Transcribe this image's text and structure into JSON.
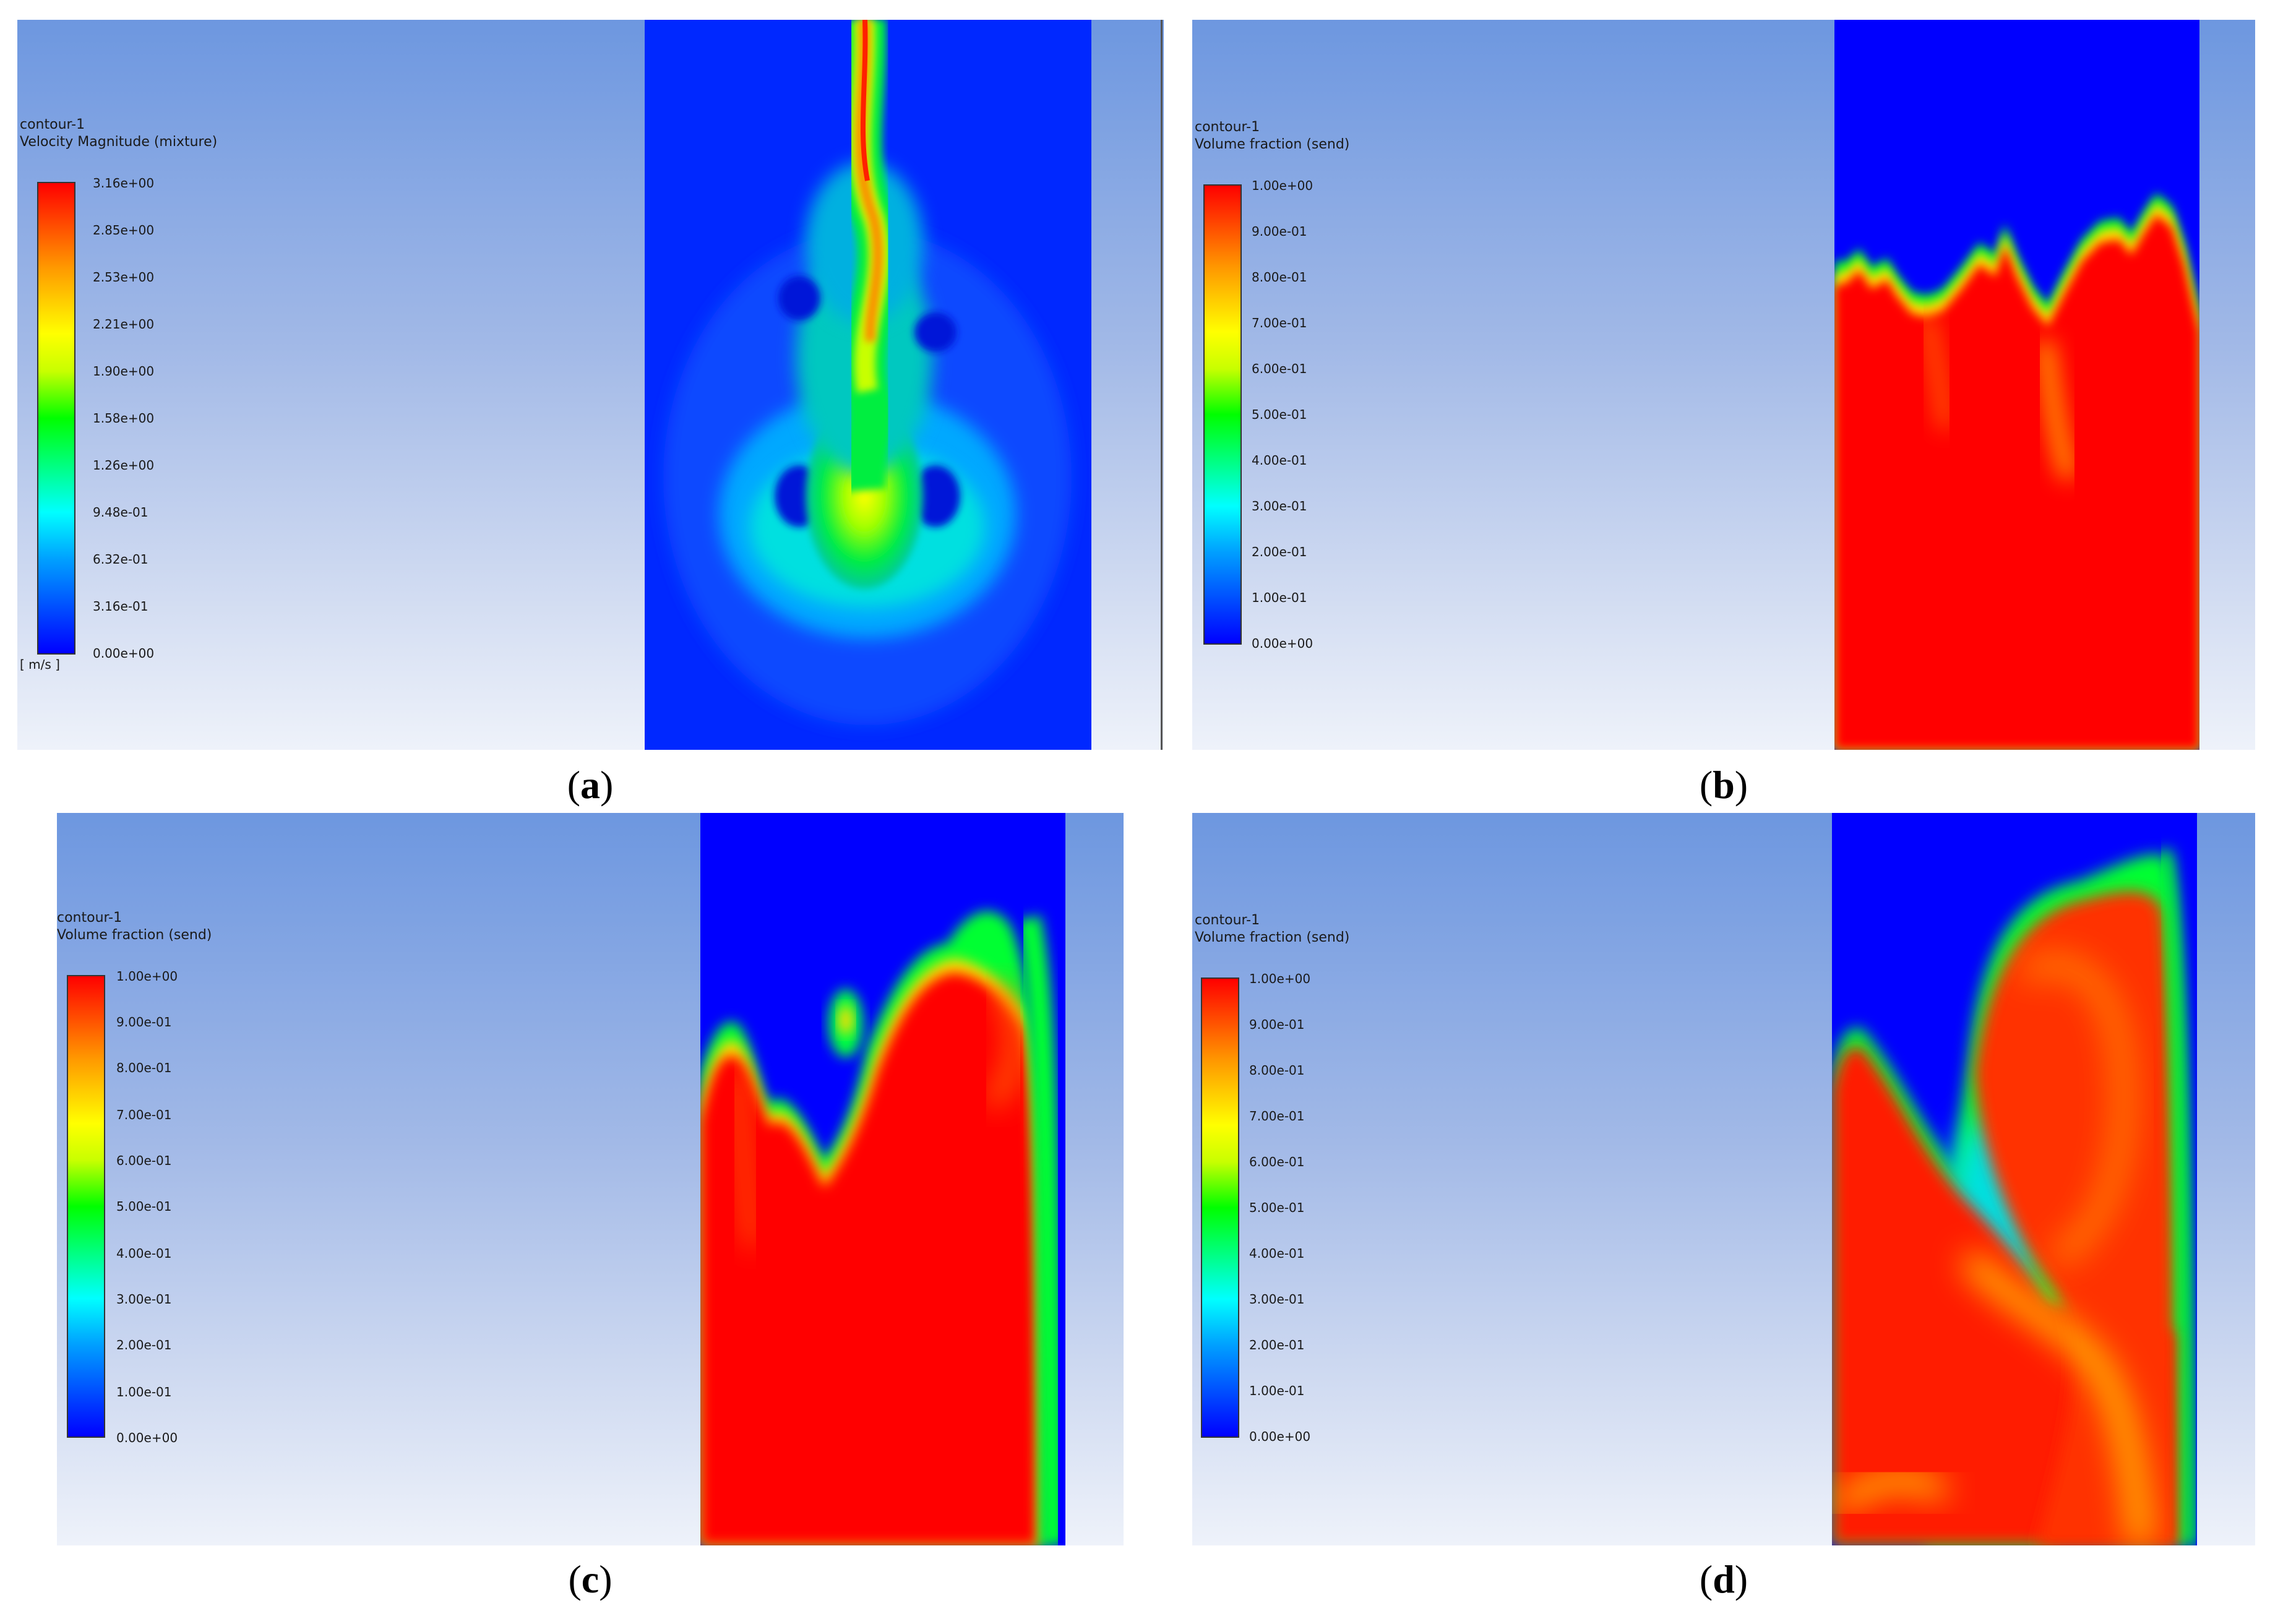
{
  "panels": [
    {
      "id": "a",
      "caption_letter": "a",
      "legend": {
        "name": "contour-1",
        "quantity": "Velocity Magnitude (mixture)",
        "unit": "[ m/s ]",
        "ticks": [
          "3.16e+00",
          "2.85e+00",
          "2.53e+00",
          "2.21e+00",
          "1.90e+00",
          "1.58e+00",
          "1.26e+00",
          "9.48e-01",
          "6.32e-01",
          "3.16e-01",
          "0.00e+00"
        ]
      }
    },
    {
      "id": "b",
      "caption_letter": "b",
      "legend": {
        "name": "contour-1",
        "quantity": "Volume fraction (send)",
        "ticks": [
          "1.00e+00",
          "9.00e-01",
          "8.00e-01",
          "7.00e-01",
          "6.00e-01",
          "5.00e-01",
          "4.00e-01",
          "3.00e-01",
          "2.00e-01",
          "1.00e-01",
          "0.00e+00"
        ]
      }
    },
    {
      "id": "c",
      "caption_letter": "c",
      "legend": {
        "name": "contour-1",
        "quantity": "Volume fraction (send)",
        "ticks": [
          "1.00e+00",
          "9.00e-01",
          "8.00e-01",
          "7.00e-01",
          "6.00e-01",
          "5.00e-01",
          "4.00e-01",
          "3.00e-01",
          "2.00e-01",
          "1.00e-01",
          "0.00e+00"
        ]
      }
    },
    {
      "id": "d",
      "caption_letter": "d",
      "legend": {
        "name": "contour-1",
        "quantity": "Volume fraction (send)",
        "ticks": [
          "1.00e+00",
          "9.00e-01",
          "8.00e-01",
          "7.00e-01",
          "6.00e-01",
          "5.00e-01",
          "4.00e-01",
          "3.00e-01",
          "2.00e-01",
          "1.00e-01",
          "0.00e+00"
        ]
      }
    }
  ],
  "colormap": [
    "#0000ff",
    "#00a0ff",
    "#00ffff",
    "#00ff00",
    "#ffff00",
    "#ff9900",
    "#ff0000"
  ]
}
